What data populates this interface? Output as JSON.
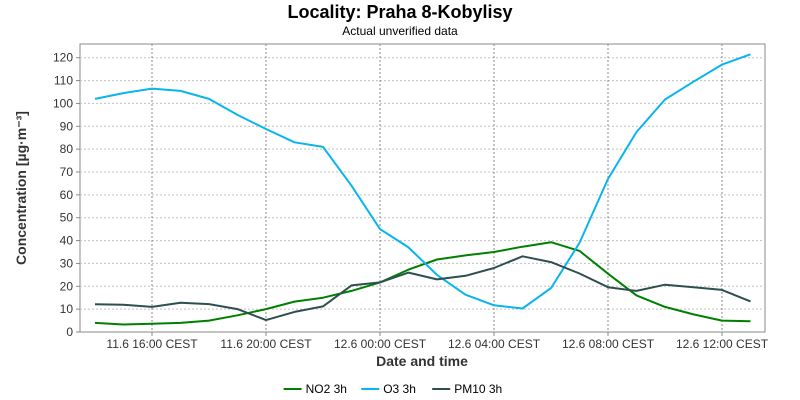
{
  "chart_data": {
    "type": "line",
    "title": "Locality: Praha 8-Kobylisy",
    "subtitle": "Actual unverified data",
    "xlabel": "Date and time",
    "ylabel": "Concentration [µg·m⁻³]",
    "ylim": [
      0,
      126
    ],
    "yticks": [
      0,
      10,
      20,
      30,
      40,
      50,
      60,
      70,
      80,
      90,
      100,
      110,
      120
    ],
    "xticks": [
      "11.6 16:00 CEST",
      "11.6 20:00 CEST",
      "12.6 00:00 CEST",
      "12.6 04:00 CEST",
      "12.6 08:00 CEST",
      "12.6 12:00 CEST"
    ],
    "x": [
      "11.6 14:00",
      "11.6 15:00",
      "11.6 16:00",
      "11.6 17:00",
      "11.6 18:00",
      "11.6 19:00",
      "11.6 20:00",
      "11.6 21:00",
      "11.6 22:00",
      "11.6 23:00",
      "12.6 00:00",
      "12.6 01:00",
      "12.6 02:00",
      "12.6 03:00",
      "12.6 04:00",
      "12.6 05:00",
      "12.6 06:00",
      "12.6 07:00",
      "12.6 08:00",
      "12.6 09:00",
      "12.6 10:00",
      "12.6 11:00",
      "12.6 12:00",
      "12.6 13:00"
    ],
    "grid": true,
    "legend_position": "bottom",
    "series": [
      {
        "name": "NO2 3h",
        "color": "#008000",
        "values": [
          4,
          3.3,
          3.6,
          4,
          5,
          7.3,
          10,
          13.3,
          15,
          18,
          21.7,
          27.3,
          31.7,
          33.5,
          35,
          37.3,
          39.3,
          35.5,
          25.5,
          16,
          11,
          7.7,
          5,
          4.7
        ]
      },
      {
        "name": "O3 3h",
        "color": "#0ab4ee",
        "values": [
          102,
          104.5,
          106.5,
          105.5,
          102,
          95,
          88.8,
          83,
          81,
          64,
          45,
          37,
          25,
          16.3,
          11.7,
          10.3,
          19.2,
          39,
          67,
          87.5,
          101.7,
          109.5,
          117,
          121.5
        ]
      },
      {
        "name": "PM10 3h",
        "color": "#2f4f4f",
        "values": [
          12.1,
          11.9,
          11,
          12.8,
          12.2,
          10,
          5.2,
          8.8,
          11.2,
          20.4,
          21.7,
          26,
          23,
          24.6,
          28,
          33.1,
          30.6,
          25.6,
          19.6,
          18,
          20.7,
          19.6,
          18.4,
          13.4
        ]
      }
    ]
  }
}
